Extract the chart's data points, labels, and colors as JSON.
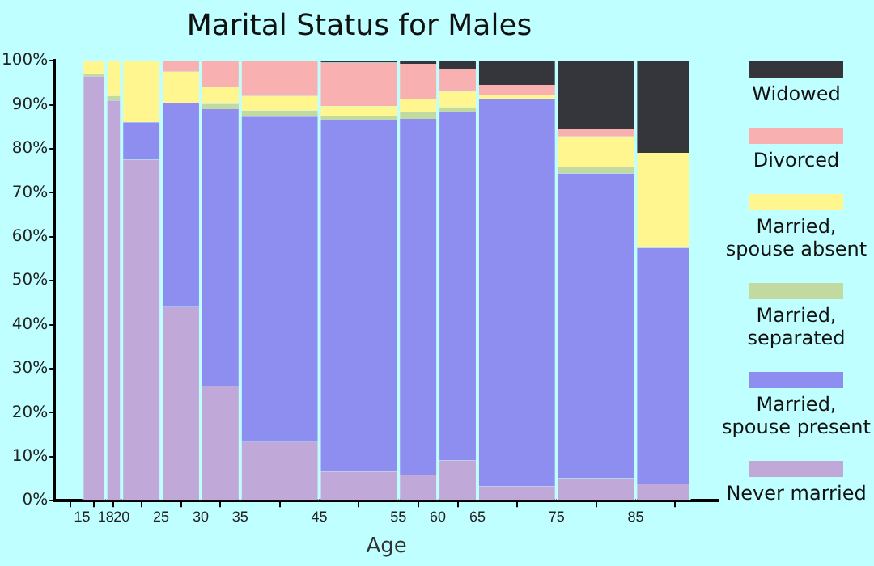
{
  "chart_data": {
    "type": "bar",
    "title": "Marital Status for Males",
    "xlabel": "Age",
    "stacked": true,
    "legend": "right",
    "x": [
      16.5,
      19,
      22.5,
      27.5,
      32.5,
      40,
      50,
      57.5,
      62.5,
      70,
      80,
      88.5
    ],
    "xlim": [
      15,
      92
    ],
    "xticks": [
      15,
      18,
      20,
      25,
      30,
      35,
      45,
      55,
      60,
      65,
      75,
      85
    ],
    "ylim": [
      0,
      100
    ],
    "yticks": [
      {
        "value": 0,
        "label": "0%"
      },
      {
        "value": 10,
        "label": "10%"
      },
      {
        "value": 20,
        "label": "20%"
      },
      {
        "value": 30,
        "label": "30%"
      },
      {
        "value": 40,
        "label": "40%"
      },
      {
        "value": 50,
        "label": "50%"
      },
      {
        "value": 60,
        "label": "60%"
      },
      {
        "value": 70,
        "label": "70%"
      },
      {
        "value": 80,
        "label": "80%"
      },
      {
        "value": 90,
        "label": "90%"
      },
      {
        "value": 100,
        "label": "100%"
      }
    ],
    "series": [
      {
        "name": "Never married",
        "color": "#c0a9d9",
        "values": [
          96.5,
          91,
          77.5,
          44,
          26,
          13.3,
          6.6,
          5.9,
          9.2,
          3.3,
          5.1,
          3.7
        ]
      },
      {
        "name": "Married, spouse present",
        "color": "#8e8ef0",
        "values": [
          0,
          0,
          8.5,
          46.3,
          63,
          74,
          79.9,
          80.9,
          79.1,
          87.9,
          69.3,
          53.8
        ]
      },
      {
        "name": "Married, separated",
        "color": "#c2d9a0",
        "values": [
          0.5,
          1,
          0,
          0,
          1.2,
          1.4,
          1,
          1.5,
          1.1,
          0,
          1.4,
          0
        ]
      },
      {
        "name": "Married, spouse absent",
        "color": "#fff68f",
        "values": [
          3,
          8,
          14,
          7.2,
          3.8,
          3.3,
          2.2,
          2.9,
          3.6,
          1.1,
          7,
          21.6
        ]
      },
      {
        "name": "Divorced",
        "color": "#f8b0b0",
        "values": [
          0,
          0,
          0,
          2.5,
          6,
          8,
          9.9,
          8.1,
          5.2,
          2.2,
          1.8,
          0
        ]
      },
      {
        "name": "Widowed",
        "color": "#35363b",
        "values": [
          0,
          0,
          0,
          0,
          0,
          0,
          0.4,
          0.7,
          1.8,
          5.5,
          15.4,
          20.9
        ]
      }
    ]
  }
}
